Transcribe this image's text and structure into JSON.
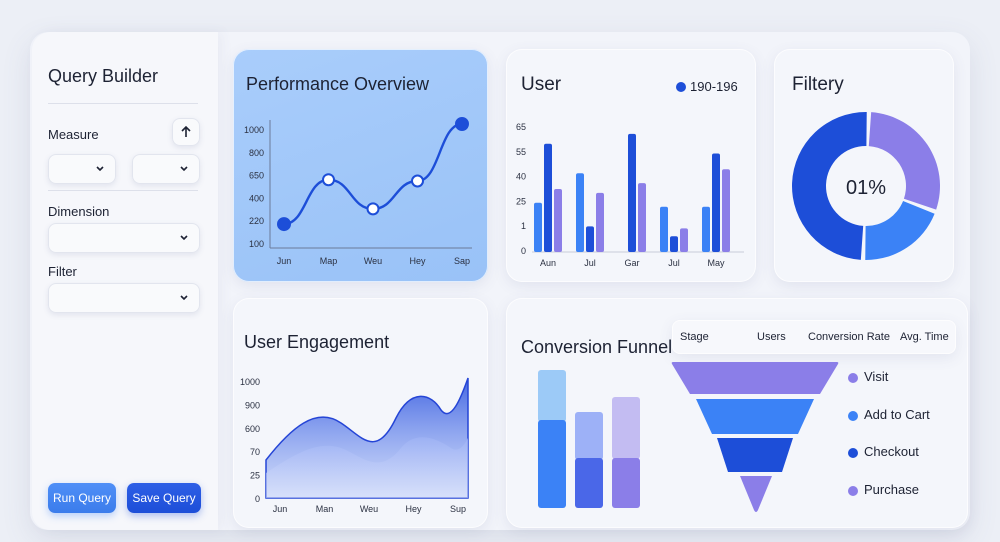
{
  "sidebar": {
    "title": "Query Builder",
    "measure_label": "Measure",
    "dimension_label": "Dimension",
    "filter_label": "Filter",
    "run_button": "Run Query",
    "save_button": "Save Query"
  },
  "performance": {
    "title": "Performance Overview",
    "chart_data": {
      "type": "line",
      "categories": [
        "Jun",
        "Map",
        "Weu",
        "Hey",
        "Sap"
      ],
      "y_ticks": [
        "1000",
        "800",
        "650",
        "400",
        "220",
        "100"
      ],
      "values": [
        210,
        560,
        330,
        550,
        1000
      ],
      "ylim": [
        100,
        1000
      ]
    }
  },
  "user": {
    "title": "User",
    "legend": "190-196",
    "chart_data": {
      "type": "bar",
      "categories": [
        "Aun",
        "Jul",
        "Gar",
        "Jul",
        "May"
      ],
      "y_ticks": [
        "65",
        "55",
        "40",
        "25",
        "1",
        "0"
      ],
      "series": [
        {
          "color": "#3b82f6",
          "values": [
            25,
            40,
            0,
            23,
            23
          ]
        },
        {
          "color": "#1d4ed8",
          "values": [
            55,
            13,
            60,
            8,
            50
          ]
        },
        {
          "color": "#8b7ee8",
          "values": [
            32,
            30,
            35,
            12,
            42
          ]
        }
      ],
      "ylim": [
        0,
        65
      ]
    }
  },
  "filtery": {
    "title": "Filtery",
    "center_label": "01%",
    "chart_data": {
      "type": "pie",
      "values": [
        30,
        20,
        50
      ],
      "colors": [
        "#8b7ee8",
        "#3b82f6",
        "#1d4ed8"
      ]
    }
  },
  "engagement": {
    "title": "User Engagement",
    "chart_data": {
      "type": "area",
      "categories": [
        "Jun",
        "Man",
        "Weu",
        "Hey",
        "Sup"
      ],
      "y_ticks": [
        "1000",
        "900",
        "600",
        "70",
        "25",
        "0"
      ]
    }
  },
  "funnel": {
    "title": "Conversion Funnel",
    "headers": [
      "Stage",
      "Users",
      "Conversion Rate",
      "Avg. Time"
    ],
    "stages": [
      {
        "label": "Visit",
        "color": "#8b7ee8"
      },
      {
        "label": "Add to Cart",
        "color": "#3b82f6"
      },
      {
        "label": "Checkout",
        "color": "#1d4ed8"
      },
      {
        "label": "Purchase",
        "color": "#8b7ee8"
      }
    ]
  }
}
